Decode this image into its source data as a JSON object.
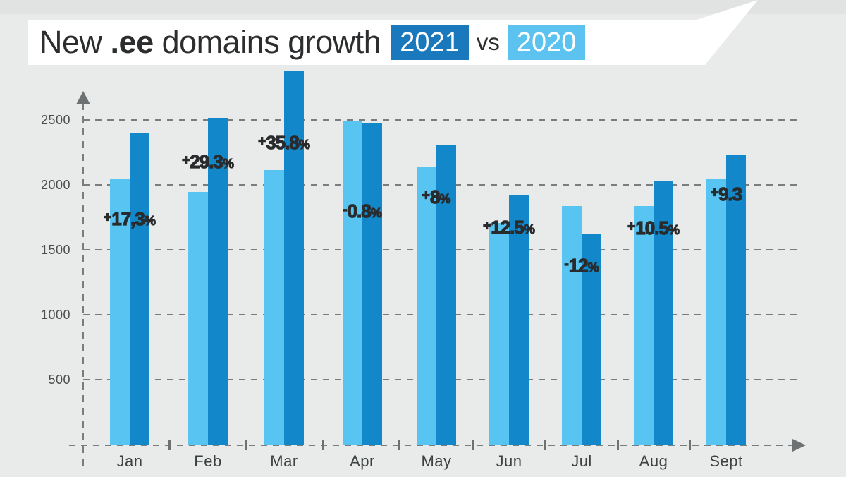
{
  "header": {
    "title_prefix": "New",
    "title_domain": ".ee",
    "title_suffix": "domains growth",
    "year_primary": "2021",
    "vs_label": "vs",
    "year_secondary": "2020",
    "colors": {
      "primary_box": "#1a79bc",
      "secondary_box": "#5cc3f0",
      "banner": "#ffffff",
      "background": "#e9ebea"
    }
  },
  "chart_data": {
    "type": "bar",
    "title": "New .ee domains growth 2021 vs 2020",
    "categories": [
      "Jan",
      "Feb",
      "Mar",
      "Apr",
      "May",
      "Jun",
      "Jul",
      "Aug",
      "Sept"
    ],
    "series": [
      {
        "name": "2020",
        "color": "#58c4f1",
        "values": [
          2050,
          1950,
          2120,
          2500,
          2140,
          1710,
          1845,
          1840,
          2050
        ]
      },
      {
        "name": "2021",
        "color": "#1287c9",
        "values": [
          2405,
          2520,
          2880,
          2480,
          2310,
          1925,
          1625,
          2035,
          2240
        ]
      }
    ],
    "deltas": [
      {
        "sign": "+",
        "num": "17,3",
        "pct": "%"
      },
      {
        "sign": "+",
        "num": "29.3",
        "pct": "%"
      },
      {
        "sign": "+",
        "num": "35.8",
        "pct": "%"
      },
      {
        "sign": "-",
        "num": "0.8",
        "pct": "%"
      },
      {
        "sign": "+",
        "num": "8",
        "pct": "%"
      },
      {
        "sign": "+",
        "num": "12.5",
        "pct": "%"
      },
      {
        "sign": "-",
        "num": "12",
        "pct": "%"
      },
      {
        "sign": "+",
        "num": "10.5",
        "pct": "%"
      },
      {
        "sign": "+",
        "num": "9.3",
        "pct": ""
      }
    ],
    "yticks": [
      2500,
      2000,
      1500,
      1000,
      500
    ],
    "ylim": [
      0,
      2900
    ],
    "xlabel": "",
    "ylabel": "",
    "grid": "dashed horizontal gridlines every 500",
    "legend_position": "inside title banner"
  }
}
